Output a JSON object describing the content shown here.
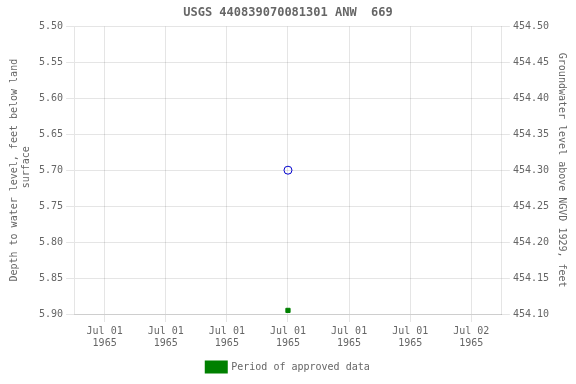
{
  "chart_data": {
    "type": "scatter",
    "title": "USGS 440839070081301 ANW  669",
    "categories": [
      "Jul 01\n1965",
      "Jul 01\n1965",
      "Jul 01\n1965",
      "Jul 01\n1965",
      "Jul 01\n1965",
      "Jul 01\n1965",
      "Jul 02\n1965"
    ],
    "series": [
      {
        "color": "#0000cc",
        "marker": "circle",
        "values": [
          null,
          null,
          null,
          5.7,
          null,
          null,
          null
        ]
      },
      {
        "name": "Period of approved data",
        "color": "#008000",
        "marker": "square",
        "values": [
          null,
          null,
          null,
          5.895,
          null,
          null,
          null
        ]
      }
    ],
    "ylabel": "Depth to water level, feet below land\n surface",
    "y2label": "Groundwater level above NGVD 1929, feet",
    "ylim": [
      5.9,
      5.5
    ],
    "yticks": [
      {
        "value": 5.5,
        "label": "5.50"
      },
      5.55,
      {
        "value": 5.6,
        "label": "5.60"
      },
      5.65,
      {
        "value": 5.7,
        "label": "5.70"
      },
      5.75,
      {
        "value": 5.8,
        "label": "5.80"
      },
      5.85,
      {
        "value": 5.9,
        "label": "5.90"
      }
    ],
    "y2lim": [
      454.1,
      454.5
    ],
    "y2ticks": [
      {
        "value": 454.1,
        "label": "454.10"
      },
      454.15,
      {
        "value": 454.2,
        "label": "454.20"
      },
      454.25,
      {
        "value": 454.3,
        "label": "454.30"
      },
      454.35,
      {
        "value": 454.4,
        "label": "454.40"
      },
      454.45,
      {
        "value": 454.5,
        "label": "454.50"
      }
    ],
    "grid": true,
    "legend": "bottom"
  }
}
